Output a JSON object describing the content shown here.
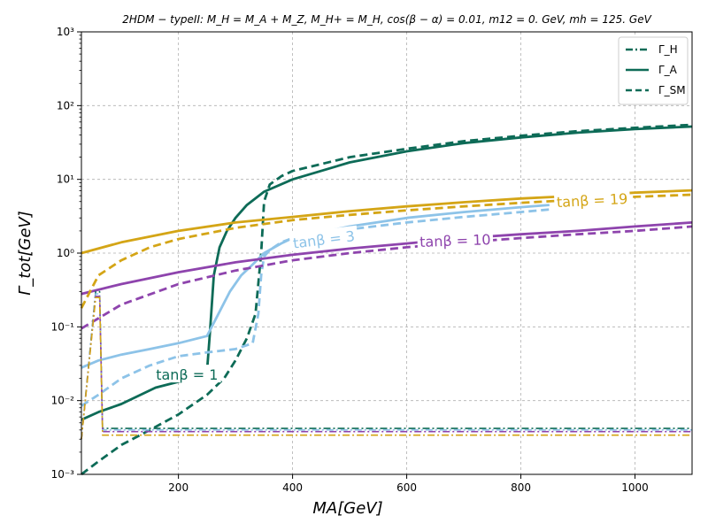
{
  "chart_data": {
    "type": "line",
    "title": "2HDM − typeII: M_H = M_A + M_Z, M_H+ = M_H, cos(β − α) = 0.01, m12 = 0. GeV, mh = 125. GeV",
    "xlabel": "MA[GeV]",
    "ylabel": "Γ_tot[GeV]",
    "xlim": [
      30,
      1100
    ],
    "ylim": [
      0.001,
      1000
    ],
    "yscale": "log",
    "grid": true,
    "legend_position": "top-right",
    "xticks": [
      200,
      400,
      600,
      800,
      1000
    ],
    "yticks": [
      0.001,
      0.01,
      0.1,
      1,
      10,
      100,
      1000
    ],
    "ytick_labels": [
      "10⁻³",
      "10⁻²",
      "10⁻¹",
      "10⁰",
      "10¹",
      "10²",
      "10³"
    ],
    "xtick_labels": [
      "200",
      "400",
      "600",
      "800",
      "1000"
    ],
    "legend": [
      {
        "label": "Γ_H",
        "style": "dashdot"
      },
      {
        "label": "Γ_A",
        "style": "solid"
      },
      {
        "label": "Γ_SM",
        "style": "dashed"
      }
    ],
    "colors": {
      "tb1": "#0d6b57",
      "tb3": "#8dc3e8",
      "tb10": "#8e44ad",
      "tb19": "#d4a516"
    },
    "series": [
      {
        "group": "tb1",
        "quantity": "Gamma_A",
        "style": "solid",
        "x": [
          30,
          60,
          100,
          160,
          200,
          250,
          255,
          262,
          272,
          285,
          300,
          320,
          350,
          400,
          500,
          600,
          700,
          800,
          900,
          1000,
          1100
        ],
        "y": [
          0.0055,
          0.007,
          0.009,
          0.015,
          0.018,
          0.025,
          0.08,
          0.5,
          1.2,
          2.0,
          3.0,
          4.5,
          6.8,
          10,
          17,
          24,
          31,
          37,
          43,
          48,
          52
        ]
      },
      {
        "group": "tb1",
        "quantity": "Gamma_SM",
        "style": "dashed",
        "x": [
          30,
          60,
          100,
          150,
          200,
          250,
          280,
          300,
          320,
          335,
          345,
          350,
          360,
          380,
          400,
          500,
          600,
          700,
          800,
          900,
          1000,
          1100
        ],
        "y": [
          0.001,
          0.0015,
          0.0025,
          0.004,
          0.0065,
          0.012,
          0.02,
          0.035,
          0.07,
          0.15,
          1.0,
          5.0,
          8.5,
          11,
          13,
          20,
          26,
          33,
          39,
          45,
          50,
          55
        ]
      },
      {
        "group": "tb3",
        "quantity": "Gamma_A",
        "style": "solid",
        "x": [
          30,
          60,
          100,
          150,
          200,
          250,
          270,
          290,
          310,
          330,
          350,
          380,
          400,
          500,
          600,
          700,
          800,
          850
        ],
        "y": [
          0.028,
          0.035,
          0.042,
          0.05,
          0.06,
          0.075,
          0.15,
          0.3,
          0.5,
          0.7,
          1.0,
          1.35,
          1.6,
          2.3,
          3.0,
          3.6,
          4.2,
          4.5
        ]
      },
      {
        "group": "tb3",
        "quantity": "Gamma_SM",
        "style": "dashed",
        "x": [
          30,
          60,
          100,
          150,
          200,
          250,
          300,
          330,
          340,
          345,
          350,
          360,
          380,
          400,
          500,
          600,
          700,
          800,
          850
        ],
        "y": [
          0.0085,
          0.012,
          0.02,
          0.03,
          0.04,
          0.045,
          0.05,
          0.06,
          0.15,
          0.5,
          0.9,
          1.1,
          1.4,
          1.6,
          2.1,
          2.6,
          3.1,
          3.6,
          3.9
        ]
      },
      {
        "group": "tb10",
        "quantity": "Gamma_A",
        "style": "solid",
        "x": [
          30,
          100,
          200,
          300,
          400,
          500,
          600,
          700,
          800,
          900,
          1000,
          1100
        ],
        "y": [
          0.28,
          0.38,
          0.55,
          0.75,
          0.95,
          1.15,
          1.35,
          1.6,
          1.8,
          2.0,
          2.3,
          2.6
        ]
      },
      {
        "group": "tb10",
        "quantity": "Gamma_SM",
        "style": "dashed",
        "x": [
          30,
          100,
          200,
          300,
          400,
          500,
          600,
          700,
          800,
          900,
          1000,
          1100
        ],
        "y": [
          0.095,
          0.2,
          0.38,
          0.58,
          0.8,
          1.0,
          1.2,
          1.4,
          1.6,
          1.8,
          2.0,
          2.3
        ]
      },
      {
        "group": "tb19",
        "quantity": "Gamma_A",
        "style": "solid",
        "x": [
          30,
          100,
          200,
          300,
          400,
          500,
          600,
          700,
          800,
          900,
          1000,
          1100
        ],
        "y": [
          1.0,
          1.4,
          2.0,
          2.6,
          3.1,
          3.7,
          4.3,
          4.9,
          5.5,
          6.0,
          6.6,
          7.1
        ]
      },
      {
        "group": "tb19",
        "quantity": "Gamma_SM",
        "style": "dashed",
        "x": [
          30,
          60,
          100,
          150,
          200,
          300,
          400,
          500,
          600,
          700,
          800,
          900,
          1000,
          1100
        ],
        "y": [
          0.18,
          0.5,
          0.8,
          1.2,
          1.55,
          2.2,
          2.8,
          3.3,
          3.8,
          4.3,
          4.8,
          5.3,
          5.8,
          6.2
        ]
      },
      {
        "group": "tb1",
        "quantity": "Gamma_H",
        "style": "dashdot",
        "x": [
          30,
          55,
          62,
          67,
          1100
        ],
        "y": [
          0.003,
          0.3,
          0.3,
          0.0042,
          0.0042
        ]
      },
      {
        "group": "tb3",
        "quantity": "Gamma_H",
        "style": "dashdot",
        "x": [
          30,
          55,
          62,
          67,
          1100
        ],
        "y": [
          0.003,
          0.28,
          0.28,
          0.004,
          0.004
        ]
      },
      {
        "group": "tb10",
        "quantity": "Gamma_H",
        "style": "dashdot",
        "x": [
          30,
          55,
          62,
          67,
          1100
        ],
        "y": [
          0.003,
          0.26,
          0.26,
          0.0038,
          0.0038
        ]
      },
      {
        "group": "tb19",
        "quantity": "Gamma_H",
        "style": "dashdot",
        "x": [
          30,
          55,
          62,
          67,
          1100
        ],
        "y": [
          0.003,
          0.25,
          0.25,
          0.0034,
          0.0034
        ]
      }
    ],
    "annotations": [
      {
        "text": "tanβ = 1",
        "x": 215,
        "y": 0.022,
        "rotation": 0,
        "group": "tb1"
      },
      {
        "text": "tanβ = 3",
        "x": 455,
        "y": 1.5,
        "rotation": -7,
        "group": "tb3"
      },
      {
        "text": "tanβ = 10",
        "x": 685,
        "y": 1.45,
        "rotation": -2,
        "group": "tb10"
      },
      {
        "text": "tanβ = 19",
        "x": 925,
        "y": 5.1,
        "rotation": -3,
        "group": "tb19"
      }
    ]
  }
}
